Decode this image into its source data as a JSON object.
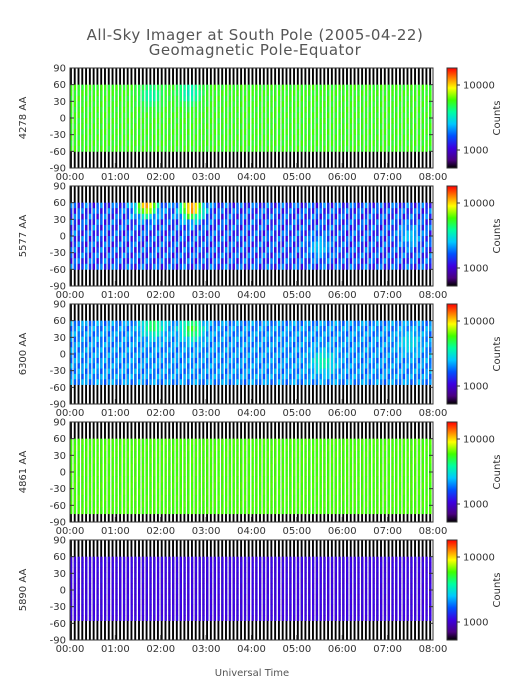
{
  "chart_data": {
    "type": "heatmap",
    "title": "All-Sky Imager at South Pole (2005-04-22)",
    "subtitle": "Geomagnetic Pole-Equator",
    "xlabel": "Universal Time",
    "x_ticks": [
      "00:00",
      "01:00",
      "02:00",
      "03:00",
      "04:00",
      "05:00",
      "06:00",
      "07:00",
      "08:00"
    ],
    "x_range_hours": [
      0,
      8
    ],
    "y_ticks": [
      90,
      60,
      30,
      0,
      -30,
      -60,
      -90
    ],
    "y_range": [
      -90,
      90
    ],
    "colorbar_label": "Counts",
    "colorbar_ticks": [
      "10000",
      "1000"
    ],
    "colorbar_scale": "log",
    "panels": [
      {
        "ylabel": "4278 AA",
        "valid_lat_range": [
          -60,
          60
        ],
        "base_level": 0.66,
        "variation": 0.02,
        "bright_spots": [
          {
            "t": 1.8,
            "lat": 40,
            "level": 0.55
          },
          {
            "t": 2.65,
            "lat": 45,
            "level": 0.52
          }
        ]
      },
      {
        "ylabel": "5577 AA",
        "valid_lat_range": [
          -60,
          60
        ],
        "base_level": 0.3,
        "variation": 0.1,
        "bright_spots": [
          {
            "t": 1.7,
            "lat": 55,
            "level": 0.88
          },
          {
            "t": 2.7,
            "lat": 50,
            "level": 0.92
          },
          {
            "t": 5.5,
            "lat": -20,
            "level": 0.45
          },
          {
            "t": 7.5,
            "lat": 0,
            "level": 0.45
          }
        ]
      },
      {
        "ylabel": "6300 AA",
        "valid_lat_range": [
          -55,
          60
        ],
        "base_level": 0.38,
        "variation": 0.06,
        "bright_spots": [
          {
            "t": 1.85,
            "lat": 50,
            "level": 0.62
          },
          {
            "t": 2.7,
            "lat": 45,
            "level": 0.66
          },
          {
            "t": 5.6,
            "lat": -15,
            "level": 0.55
          },
          {
            "t": 7.5,
            "lat": 20,
            "level": 0.48
          }
        ]
      },
      {
        "ylabel": "4861 AA",
        "valid_lat_range": [
          -75,
          60
        ],
        "base_level": 0.68,
        "variation": 0.01,
        "bright_spots": []
      },
      {
        "ylabel": "5890 AA",
        "valid_lat_range": [
          -55,
          60
        ],
        "base_level": 0.2,
        "variation": 0.01,
        "bright_spots": []
      }
    ]
  }
}
